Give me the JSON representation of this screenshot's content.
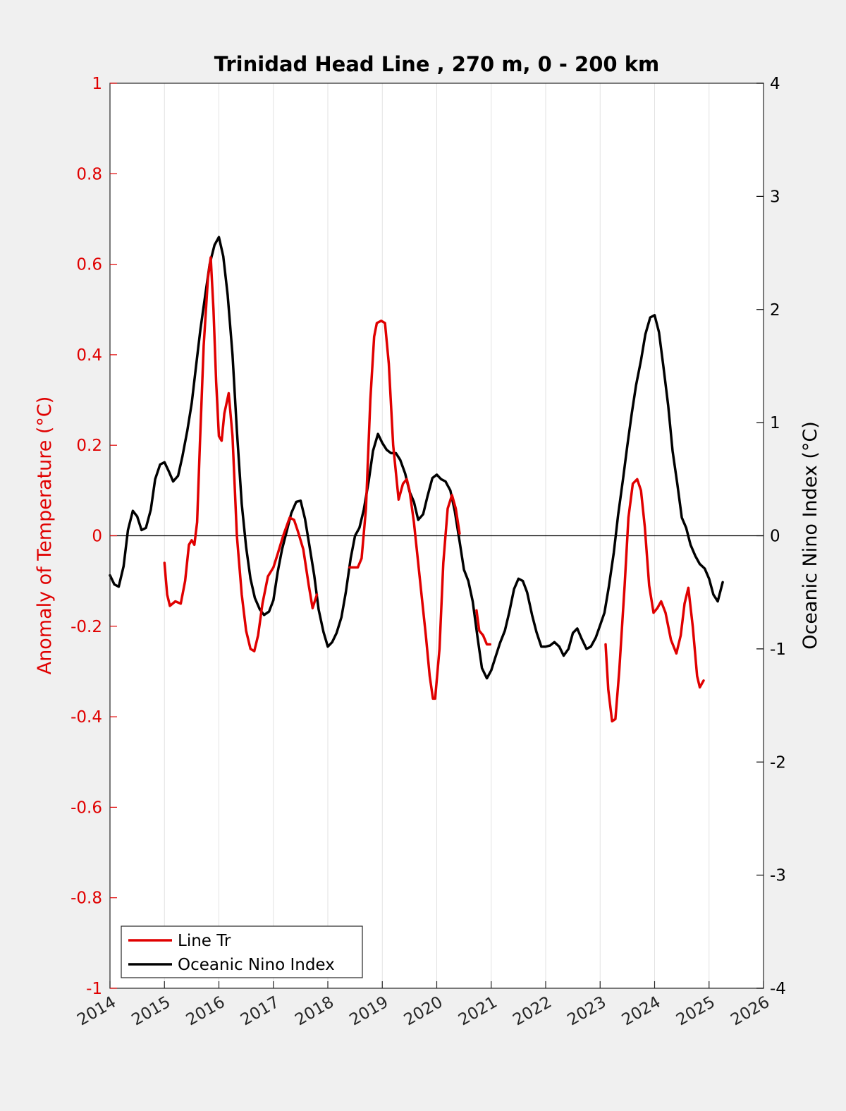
{
  "chart_data": {
    "type": "line",
    "title": "Trinidad Head Line , 270 m, 0 - 200 km",
    "ylabel_left": "Anomaly of Temperature (°C)",
    "ylabel_right": "Oceanic Nino Index (°C)",
    "xlabel": "",
    "xlim": [
      2014,
      2026
    ],
    "ylim_left": [
      -1,
      1
    ],
    "ylim_right": [
      -4,
      4
    ],
    "x_ticks": [
      "2014",
      "2015",
      "2016",
      "2017",
      "2018",
      "2019",
      "2020",
      "2021",
      "2022",
      "2023",
      "2024",
      "2025",
      "2026"
    ],
    "y_ticks_left": [
      "-1",
      "-0.8",
      "-0.6",
      "-0.4",
      "-0.2",
      "0",
      "0.2",
      "0.4",
      "0.6",
      "0.8",
      "1"
    ],
    "y_ticks_right": [
      "-4",
      "-3",
      "-2",
      "-1",
      "0",
      "1",
      "2",
      "3",
      "4"
    ],
    "grid": "vertical lines at x ticks",
    "zero_line": true,
    "legend_position": "bottom-left",
    "series": [
      {
        "name": "Line Tr",
        "axis": "left",
        "color": "#e00000",
        "segments": [
          [
            [
              2015.0,
              -0.06
            ],
            [
              2015.05,
              -0.13
            ],
            [
              2015.1,
              -0.155
            ],
            [
              2015.2,
              -0.145
            ],
            [
              2015.3,
              -0.15
            ],
            [
              2015.38,
              -0.1
            ],
            [
              2015.45,
              -0.02
            ],
            [
              2015.5,
              -0.01
            ],
            [
              2015.55,
              -0.02
            ],
            [
              2015.6,
              0.03
            ],
            [
              2015.65,
              0.2
            ],
            [
              2015.72,
              0.42
            ],
            [
              2015.8,
              0.57
            ],
            [
              2015.85,
              0.615
            ],
            [
              2015.9,
              0.5
            ],
            [
              2015.95,
              0.34
            ],
            [
              2016.0,
              0.22
            ],
            [
              2016.05,
              0.21
            ],
            [
              2016.1,
              0.27
            ],
            [
              2016.18,
              0.315
            ],
            [
              2016.25,
              0.22
            ],
            [
              2016.33,
              0.0
            ],
            [
              2016.42,
              -0.13
            ],
            [
              2016.5,
              -0.21
            ],
            [
              2016.58,
              -0.25
            ],
            [
              2016.65,
              -0.255
            ],
            [
              2016.72,
              -0.22
            ],
            [
              2016.8,
              -0.15
            ],
            [
              2016.9,
              -0.09
            ],
            [
              2017.0,
              -0.07
            ],
            [
              2017.08,
              -0.04
            ],
            [
              2017.18,
              0.0
            ],
            [
              2017.3,
              0.04
            ],
            [
              2017.38,
              0.035
            ],
            [
              2017.45,
              0.01
            ],
            [
              2017.55,
              -0.03
            ],
            [
              2017.65,
              -0.11
            ],
            [
              2017.72,
              -0.16
            ],
            [
              2017.8,
              -0.13
            ]
          ],
          [
            [
              2018.4,
              -0.07
            ],
            [
              2018.48,
              -0.07
            ],
            [
              2018.55,
              -0.07
            ],
            [
              2018.62,
              -0.05
            ],
            [
              2018.7,
              0.06
            ],
            [
              2018.78,
              0.3
            ],
            [
              2018.85,
              0.44
            ],
            [
              2018.9,
              0.47
            ],
            [
              2018.98,
              0.475
            ],
            [
              2019.05,
              0.47
            ],
            [
              2019.12,
              0.38
            ],
            [
              2019.2,
              0.2
            ],
            [
              2019.3,
              0.08
            ],
            [
              2019.38,
              0.115
            ],
            [
              2019.45,
              0.125
            ],
            [
              2019.5,
              0.1
            ],
            [
              2019.58,
              0.03
            ],
            [
              2019.65,
              -0.05
            ],
            [
              2019.72,
              -0.13
            ],
            [
              2019.8,
              -0.22
            ],
            [
              2019.87,
              -0.31
            ],
            [
              2019.93,
              -0.36
            ],
            [
              2019.97,
              -0.36
            ],
            [
              2020.05,
              -0.25
            ],
            [
              2020.12,
              -0.06
            ],
            [
              2020.2,
              0.06
            ],
            [
              2020.28,
              0.09
            ],
            [
              2020.35,
              0.06
            ],
            [
              2020.42,
              0.005
            ]
          ],
          [
            [
              2020.73,
              -0.165
            ],
            [
              2020.78,
              -0.21
            ],
            [
              2020.85,
              -0.22
            ],
            [
              2020.92,
              -0.24
            ],
            [
              2020.98,
              -0.24
            ]
          ],
          [
            [
              2023.1,
              -0.24
            ],
            [
              2023.15,
              -0.34
            ],
            [
              2023.22,
              -0.41
            ],
            [
              2023.28,
              -0.405
            ],
            [
              2023.35,
              -0.3
            ],
            [
              2023.45,
              -0.11
            ],
            [
              2023.52,
              0.04
            ],
            [
              2023.6,
              0.115
            ],
            [
              2023.68,
              0.125
            ],
            [
              2023.75,
              0.1
            ],
            [
              2023.82,
              0.02
            ],
            [
              2023.9,
              -0.11
            ],
            [
              2023.98,
              -0.17
            ],
            [
              2024.05,
              -0.16
            ],
            [
              2024.12,
              -0.145
            ],
            [
              2024.2,
              -0.17
            ],
            [
              2024.3,
              -0.23
            ],
            [
              2024.4,
              -0.26
            ],
            [
              2024.48,
              -0.22
            ],
            [
              2024.55,
              -0.15
            ],
            [
              2024.62,
              -0.115
            ],
            [
              2024.7,
              -0.2
            ],
            [
              2024.78,
              -0.31
            ],
            [
              2024.83,
              -0.335
            ],
            [
              2024.9,
              -0.32
            ]
          ]
        ]
      },
      {
        "name": "Oceanic Nino Index",
        "axis": "right",
        "color": "#000000",
        "segments": [
          [
            [
              2014.0,
              -0.35
            ],
            [
              2014.08,
              -0.43
            ],
            [
              2014.16,
              -0.45
            ],
            [
              2014.25,
              -0.27
            ],
            [
              2014.33,
              0.05
            ],
            [
              2014.42,
              0.22
            ],
            [
              2014.5,
              0.17
            ],
            [
              2014.58,
              0.05
            ],
            [
              2014.66,
              0.07
            ],
            [
              2014.75,
              0.23
            ],
            [
              2014.83,
              0.5
            ],
            [
              2014.92,
              0.63
            ],
            [
              2015.0,
              0.65
            ],
            [
              2015.08,
              0.57
            ],
            [
              2015.16,
              0.48
            ],
            [
              2015.25,
              0.53
            ],
            [
              2015.33,
              0.7
            ],
            [
              2015.42,
              0.93
            ],
            [
              2015.5,
              1.17
            ],
            [
              2015.58,
              1.5
            ],
            [
              2015.66,
              1.82
            ],
            [
              2015.75,
              2.13
            ],
            [
              2015.83,
              2.4
            ],
            [
              2015.92,
              2.57
            ],
            [
              2016.0,
              2.64
            ],
            [
              2016.08,
              2.47
            ],
            [
              2016.16,
              2.13
            ],
            [
              2016.25,
              1.6
            ],
            [
              2016.33,
              0.93
            ],
            [
              2016.42,
              0.28
            ],
            [
              2016.5,
              -0.1
            ],
            [
              2016.58,
              -0.38
            ],
            [
              2016.66,
              -0.55
            ],
            [
              2016.75,
              -0.65
            ],
            [
              2016.83,
              -0.7
            ],
            [
              2016.92,
              -0.67
            ],
            [
              2017.0,
              -0.57
            ],
            [
              2017.08,
              -0.32
            ],
            [
              2017.16,
              -0.12
            ],
            [
              2017.25,
              0.05
            ],
            [
              2017.33,
              0.2
            ],
            [
              2017.42,
              0.3
            ],
            [
              2017.5,
              0.31
            ],
            [
              2017.58,
              0.15
            ],
            [
              2017.66,
              -0.08
            ],
            [
              2017.75,
              -0.35
            ],
            [
              2017.83,
              -0.65
            ],
            [
              2017.92,
              -0.85
            ],
            [
              2018.0,
              -0.98
            ],
            [
              2018.08,
              -0.94
            ],
            [
              2018.16,
              -0.86
            ],
            [
              2018.25,
              -0.72
            ],
            [
              2018.33,
              -0.5
            ],
            [
              2018.42,
              -0.2
            ],
            [
              2018.5,
              0.0
            ],
            [
              2018.58,
              0.07
            ],
            [
              2018.66,
              0.23
            ],
            [
              2018.75,
              0.48
            ],
            [
              2018.83,
              0.75
            ],
            [
              2018.92,
              0.9
            ],
            [
              2019.0,
              0.82
            ],
            [
              2019.08,
              0.76
            ],
            [
              2019.16,
              0.73
            ],
            [
              2019.25,
              0.73
            ],
            [
              2019.33,
              0.67
            ],
            [
              2019.42,
              0.55
            ],
            [
              2019.5,
              0.39
            ],
            [
              2019.58,
              0.3
            ],
            [
              2019.66,
              0.14
            ],
            [
              2019.75,
              0.19
            ],
            [
              2019.83,
              0.35
            ],
            [
              2019.92,
              0.51
            ],
            [
              2020.0,
              0.54
            ],
            [
              2020.08,
              0.5
            ],
            [
              2020.16,
              0.48
            ],
            [
              2020.25,
              0.4
            ],
            [
              2020.33,
              0.22
            ],
            [
              2020.42,
              -0.05
            ],
            [
              2020.5,
              -0.3
            ],
            [
              2020.58,
              -0.4
            ],
            [
              2020.66,
              -0.58
            ],
            [
              2020.75,
              -0.9
            ],
            [
              2020.83,
              -1.17
            ],
            [
              2020.92,
              -1.26
            ],
            [
              2021.0,
              -1.19
            ],
            [
              2021.08,
              -1.07
            ],
            [
              2021.16,
              -0.95
            ],
            [
              2021.25,
              -0.84
            ],
            [
              2021.33,
              -0.68
            ],
            [
              2021.42,
              -0.47
            ],
            [
              2021.5,
              -0.38
            ],
            [
              2021.58,
              -0.4
            ],
            [
              2021.66,
              -0.5
            ],
            [
              2021.75,
              -0.7
            ],
            [
              2021.83,
              -0.85
            ],
            [
              2021.92,
              -0.98
            ],
            [
              2022.0,
              -0.98
            ],
            [
              2022.08,
              -0.97
            ],
            [
              2022.16,
              -0.94
            ],
            [
              2022.25,
              -0.98
            ],
            [
              2022.33,
              -1.06
            ],
            [
              2022.42,
              -1.0
            ],
            [
              2022.5,
              -0.86
            ],
            [
              2022.58,
              -0.82
            ],
            [
              2022.66,
              -0.91
            ],
            [
              2022.75,
              -1.0
            ],
            [
              2022.83,
              -0.98
            ],
            [
              2022.92,
              -0.9
            ],
            [
              2023.0,
              -0.79
            ],
            [
              2023.08,
              -0.68
            ],
            [
              2023.16,
              -0.45
            ],
            [
              2023.25,
              -0.15
            ],
            [
              2023.33,
              0.18
            ],
            [
              2023.42,
              0.5
            ],
            [
              2023.5,
              0.8
            ],
            [
              2023.58,
              1.08
            ],
            [
              2023.66,
              1.33
            ],
            [
              2023.75,
              1.55
            ],
            [
              2023.83,
              1.78
            ],
            [
              2023.92,
              1.93
            ],
            [
              2024.0,
              1.95
            ],
            [
              2024.08,
              1.8
            ],
            [
              2024.16,
              1.5
            ],
            [
              2024.25,
              1.15
            ],
            [
              2024.33,
              0.75
            ],
            [
              2024.42,
              0.45
            ],
            [
              2024.5,
              0.16
            ],
            [
              2024.58,
              0.07
            ],
            [
              2024.66,
              -0.08
            ],
            [
              2024.75,
              -0.18
            ],
            [
              2024.83,
              -0.25
            ],
            [
              2024.92,
              -0.29
            ],
            [
              2025.0,
              -0.38
            ],
            [
              2025.08,
              -0.52
            ],
            [
              2025.16,
              -0.58
            ],
            [
              2025.25,
              -0.41
            ]
          ]
        ]
      }
    ]
  },
  "colors": {
    "left_axis": "#e00000",
    "right_axis": "#000000",
    "page_background": "#f0f0f0",
    "plot_background": "#ffffff",
    "grid": "#e2e2e2"
  }
}
